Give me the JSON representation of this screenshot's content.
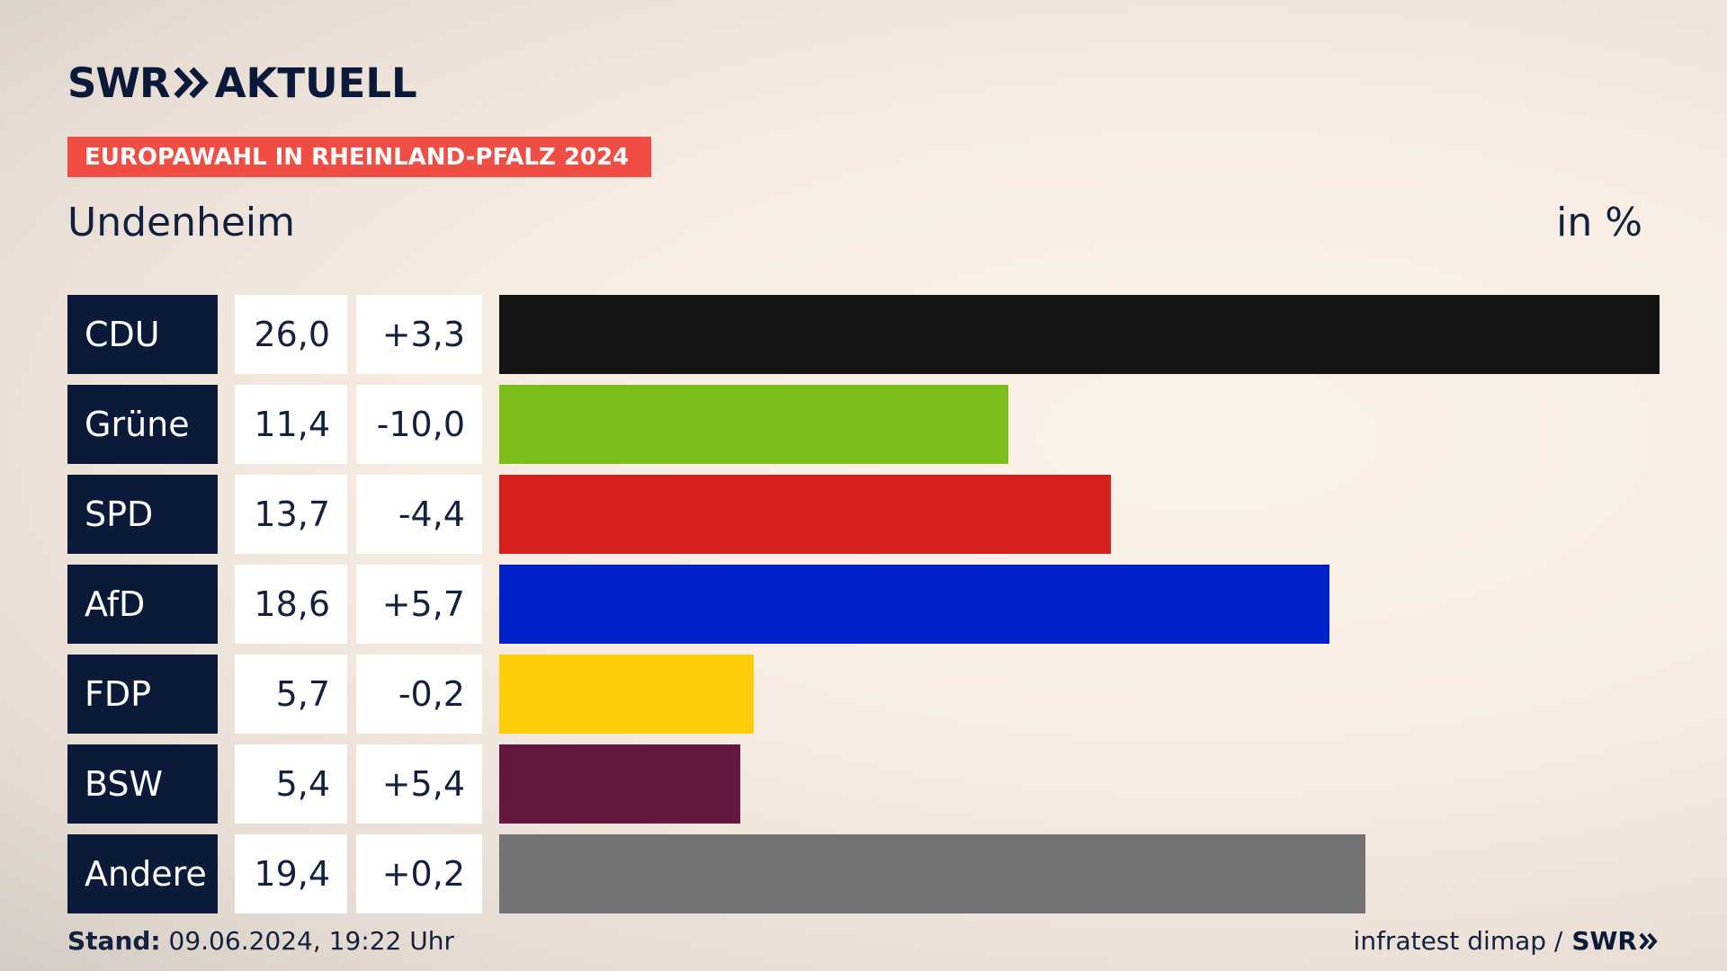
{
  "header": {
    "logo_swr": "SWR",
    "logo_aktuell": "AKTUELL",
    "banner": "EUROPAWAHL IN RHEINLAND-PFALZ 2024",
    "location": "Undenheim",
    "unit": "in %"
  },
  "chart_data": {
    "type": "bar",
    "orientation": "horizontal",
    "title": "EUROPAWAHL IN RHEINLAND-PFALZ 2024",
    "subtitle": "Undenheim",
    "unit": "in %",
    "categories": [
      "CDU",
      "Grüne",
      "SPD",
      "AfD",
      "FDP",
      "BSW",
      "Andere"
    ],
    "values": [
      26.0,
      11.4,
      13.7,
      18.6,
      5.7,
      5.4,
      19.4
    ],
    "value_labels": [
      "26,0",
      "11,4",
      "13,7",
      "18,6",
      "5,7",
      "5,4",
      "19,4"
    ],
    "change_labels": [
      "+3,3",
      "-10,0",
      "-4,4",
      "+5,7",
      "-0,2",
      "+5,4",
      "+0,2"
    ],
    "colors": [
      "#141414",
      "#7bbd1b",
      "#d71f1f",
      "#0021c8",
      "#ffcd08",
      "#65183f",
      "#737375"
    ],
    "xlim": [
      0,
      26.0
    ]
  },
  "footer": {
    "stand_label": "Stand:",
    "stand_value": "09.06.2024, 19:22 Uhr",
    "source": "infratest dimap /",
    "source_logo": "SWR"
  }
}
